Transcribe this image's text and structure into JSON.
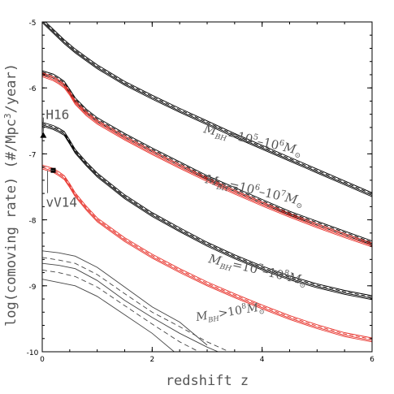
{
  "chart_data": {
    "type": "line",
    "title": "",
    "xlabel": "redshift z",
    "ylabel": "log(comoving rate) (#/Mpc³/year)",
    "xlim": [
      0,
      6
    ],
    "ylim": [
      -10,
      -5
    ],
    "xticks": [
      "0",
      "2",
      "4",
      "6"
    ],
    "yticks": [
      "-10",
      "-9",
      "-8",
      "-7",
      "-6",
      "-5"
    ],
    "grid": false,
    "series": [
      {
        "name": "M_BH=10^5-10^6 M_sun",
        "color": "#000000",
        "style": "solid-band",
        "x": [
          0,
          0.2,
          0.4,
          0.6,
          0.8,
          1.0,
          1.5,
          2.0,
          2.5,
          3.0,
          3.5,
          4.0,
          4.5,
          5.0,
          5.5,
          6.0
        ],
        "values": [
          -4.98,
          -5.14,
          -5.3,
          -5.44,
          -5.56,
          -5.68,
          -5.93,
          -6.14,
          -6.34,
          -6.53,
          -6.72,
          -6.9,
          -7.08,
          -7.26,
          -7.44,
          -7.62
        ]
      },
      {
        "name": "M_BH=10^6-10^7 M_sun (black)",
        "color": "#000000",
        "style": "solid-band",
        "x": [
          0,
          0.2,
          0.3,
          0.4,
          0.5,
          0.6,
          0.8,
          1.0,
          1.5,
          2.0,
          2.5,
          3.0,
          3.5,
          4.0,
          4.5,
          5.0,
          5.5,
          6.0
        ],
        "values": [
          -5.77,
          -5.82,
          -5.87,
          -5.93,
          -6.05,
          -6.18,
          -6.35,
          -6.48,
          -6.72,
          -6.94,
          -7.15,
          -7.36,
          -7.54,
          -7.72,
          -7.9,
          -8.05,
          -8.2,
          -8.35
        ]
      },
      {
        "name": "M_BH=10^6-10^7 M_sun (red)",
        "color": "#e8352e",
        "style": "solid-band",
        "x": [
          0,
          0.2,
          0.3,
          0.4,
          0.5,
          0.6,
          0.8,
          1.0,
          1.5,
          2.0,
          2.5,
          3.0,
          3.5,
          4.0,
          4.5,
          5.0,
          5.5,
          6.0
        ],
        "values": [
          -5.8,
          -5.86,
          -5.91,
          -5.97,
          -6.08,
          -6.22,
          -6.39,
          -6.52,
          -6.76,
          -6.98,
          -7.19,
          -7.39,
          -7.58,
          -7.76,
          -7.93,
          -8.09,
          -8.24,
          -8.38
        ]
      },
      {
        "name": "M_BH=10^7-10^8 M_sun (black)",
        "color": "#000000",
        "style": "solid-band",
        "x": [
          0,
          0.2,
          0.3,
          0.4,
          0.5,
          0.6,
          0.8,
          1.0,
          1.5,
          2.0,
          2.5,
          3.0,
          3.5,
          4.0,
          4.5,
          5.0,
          5.5,
          6.0
        ],
        "values": [
          -6.55,
          -6.6,
          -6.64,
          -6.69,
          -6.82,
          -6.96,
          -7.15,
          -7.32,
          -7.65,
          -7.92,
          -8.15,
          -8.37,
          -8.56,
          -8.73,
          -8.88,
          -9.0,
          -9.1,
          -9.18
        ]
      },
      {
        "name": "M_BH=10^7-10^8 M_sun (red)",
        "color": "#e8352e",
        "style": "solid-band",
        "x": [
          0,
          0.2,
          0.3,
          0.4,
          0.5,
          0.6,
          0.8,
          1.0,
          1.5,
          2.0,
          2.5,
          3.0,
          3.5,
          4.0,
          4.5,
          5.0,
          5.5,
          6.0
        ],
        "values": [
          -7.2,
          -7.25,
          -7.3,
          -7.36,
          -7.48,
          -7.62,
          -7.82,
          -8.0,
          -8.3,
          -8.55,
          -8.77,
          -8.97,
          -9.15,
          -9.32,
          -9.48,
          -9.62,
          -9.74,
          -9.82
        ]
      },
      {
        "name": "M_BH>10^8 M_sun (upper)",
        "color": "#444444",
        "style": "solid",
        "x": [
          0,
          0.3,
          0.6,
          1.0,
          1.5,
          2.0,
          2.5,
          3.0
        ],
        "values": [
          -8.47,
          -8.5,
          -8.55,
          -8.72,
          -9.02,
          -9.32,
          -9.55,
          -9.9
        ]
      },
      {
        "name": "M_BH>10^8 M_sun (upper dashed)",
        "color": "#444444",
        "style": "dashed",
        "x": [
          0,
          0.3,
          0.6,
          1.0,
          1.5,
          2.0,
          2.5,
          3.0,
          3.4
        ],
        "values": [
          -8.57,
          -8.61,
          -8.66,
          -8.83,
          -9.12,
          -9.4,
          -9.62,
          -9.85,
          -10.0
        ]
      },
      {
        "name": "M_BH>10^8 M_sun (middle)",
        "color": "#444444",
        "style": "solid",
        "x": [
          0,
          0.3,
          0.6,
          1.0,
          1.5,
          2.0,
          2.5,
          3.0,
          3.2
        ],
        "values": [
          -8.66,
          -8.69,
          -8.74,
          -8.92,
          -9.22,
          -9.48,
          -9.72,
          -9.93,
          -10.0
        ]
      },
      {
        "name": "M_BH>10^8 M_sun (lower dashed)",
        "color": "#444444",
        "style": "dashed",
        "x": [
          0,
          0.3,
          0.6,
          1.0,
          1.5,
          2.0,
          2.5,
          2.85
        ],
        "values": [
          -8.76,
          -8.8,
          -8.86,
          -9.02,
          -9.3,
          -9.58,
          -9.85,
          -10.0
        ]
      },
      {
        "name": "M_BH>10^8 M_sun (lower)",
        "color": "#444444",
        "style": "solid",
        "x": [
          0,
          0.3,
          0.6,
          1.0,
          1.5,
          2.0,
          2.4
        ],
        "values": [
          -8.9,
          -8.95,
          -9.0,
          -9.16,
          -9.44,
          -9.72,
          -10.0
        ]
      }
    ],
    "points": [
      {
        "label": "H16",
        "x": 0.02,
        "y": -6.72,
        "marker": "triangle"
      },
      {
        "label": "vV14",
        "x": 0.2,
        "y": -7.25,
        "marker": "square"
      }
    ],
    "annotations": [
      {
        "base": "M",
        "sub": "BH",
        "mid": "=10",
        "sup1": "5",
        "mid2": "–10",
        "sup2": "6",
        "end": "M",
        "odot": "⊙"
      },
      {
        "base": "M",
        "sub": "BH",
        "mid": "=10",
        "sup1": "6",
        "mid2": "–10",
        "sup2": "7",
        "end": "M",
        "odot": "⊙"
      },
      {
        "base": "M",
        "sub": "BH",
        "mid": "=10",
        "sup1": "7",
        "mid2": "–10",
        "sup2": "8",
        "end": "M",
        "odot": "⊙"
      },
      {
        "base": "M",
        "sub": "BH",
        "mid": ">10",
        "sup1": "8",
        "mid2": "",
        "sup2": "",
        "end": "M",
        "odot": "⊙"
      }
    ],
    "ylabel_parts": {
      "pre": "log(comoving rate) (#/Mpc",
      "sup": "3",
      "post": "/year)"
    }
  }
}
